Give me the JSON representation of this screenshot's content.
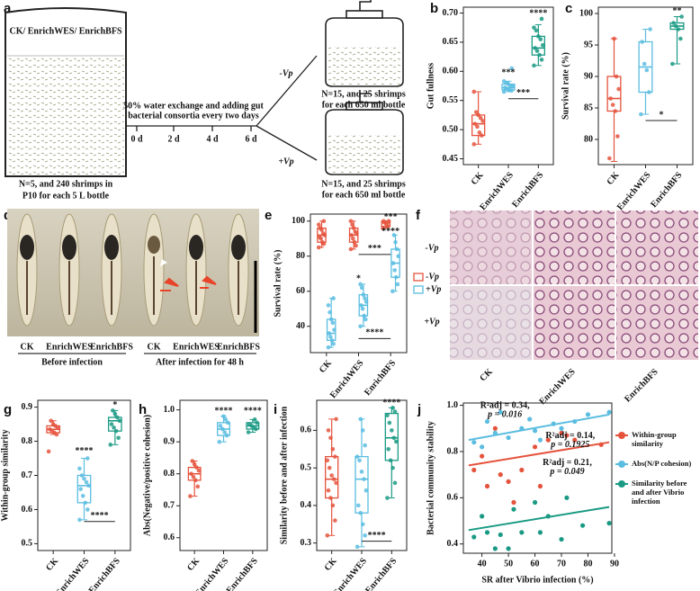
{
  "panel_a": {
    "panel": "a",
    "beaker_label": "CK/ EnrichWES/ EnrichBFS",
    "treatment": [
      "50% water exchange and adding gut",
      "bacterial consortia every two days"
    ],
    "days": [
      "0 d",
      "2 d",
      "4 d",
      "6 d"
    ],
    "minus_vp": "-Vp",
    "plus_vp": "+Vp",
    "bottle_top": [
      "N=15, and 25 shrimps",
      "for each 650 ml bottle"
    ],
    "bottle_bottom": [
      "N=15, and 25 shrimps",
      "for each 650 ml bottle"
    ],
    "beaker_caption": [
      "N=5, and 240 shrimps in",
      "P10 for each 5 L bottle"
    ]
  },
  "panel_d": {
    "panel": "d",
    "labels": [
      "CK",
      "EnrichWES",
      "EnrichBFS",
      "CK",
      "EnrichWES",
      "EnrichBFS"
    ],
    "groups": [
      "Before infection",
      "After infection for 48 h"
    ]
  },
  "panel_f": {
    "panel": "f",
    "rows": [
      "-Vp",
      "+Vp"
    ],
    "columns": [
      "CK",
      "EnrichWES",
      "EnrichBFS"
    ]
  },
  "chart_data": [
    {
      "type": "box",
      "panel": "b",
      "ylabel": "Gut fullness",
      "categories": [
        "CK",
        "EnrichWES",
        "EnrichBFS"
      ],
      "colors": [
        "#e5533d",
        "#5bbde0",
        "#1a9a84"
      ],
      "boxes": [
        {
          "min": 0.475,
          "q1": 0.49,
          "median": 0.51,
          "q3": 0.525,
          "max": 0.565
        },
        {
          "min": 0.565,
          "q1": 0.568,
          "median": 0.572,
          "q3": 0.578,
          "max": 0.583
        },
        {
          "min": 0.61,
          "q1": 0.628,
          "median": 0.64,
          "q3": 0.66,
          "max": 0.68
        }
      ],
      "points": [
        [
          0.475,
          0.49,
          0.495,
          0.505,
          0.51,
          0.515,
          0.52,
          0.525,
          0.53,
          0.565
        ],
        [
          0.565,
          0.567,
          0.568,
          0.57,
          0.572,
          0.574,
          0.575,
          0.578,
          0.58,
          0.583,
          0.605
        ],
        [
          0.61,
          0.62,
          0.628,
          0.635,
          0.64,
          0.645,
          0.655,
          0.66,
          0.67,
          0.675,
          0.69
        ]
      ],
      "ylim": [
        0.44,
        0.71
      ],
      "yticks": [
        0.45,
        {
          "value": 0.5,
          "label": "0.50"
        },
        0.55,
        {
          "value": 0.6,
          "label": "0.60"
        },
        0.65,
        {
          "value": 0.7,
          "label": "0.70"
        }
      ],
      "annotations": [
        {
          "text": "***",
          "x": "EnrichWES",
          "y": 0.597
        },
        {
          "text": "****",
          "x": "EnrichBFS",
          "y": 0.699
        }
      ],
      "brackets": [
        {
          "text": "***",
          "from": "EnrichWES",
          "to": "EnrichBFS",
          "y": 0.553
        }
      ]
    },
    {
      "type": "box",
      "panel": "c",
      "ylabel": "Survival rate (%)",
      "categories": [
        "CK",
        "EnrichWES",
        "EnrichBFS"
      ],
      "colors": [
        "#e5533d",
        "#5bbde0",
        "#1a9a84"
      ],
      "boxes": [
        {
          "min": 76.5,
          "q1": 84.5,
          "median": 86.5,
          "q3": 90,
          "max": 96
        },
        {
          "min": 84,
          "q1": 87.5,
          "median": 91.5,
          "q3": 95.5,
          "max": 97.5
        },
        {
          "min": 92,
          "q1": 97.5,
          "median": 98,
          "q3": 98.5,
          "max": 99.5
        }
      ],
      "points": [
        [
          77,
          80.5,
          84.5,
          85.5,
          86.5,
          88,
          90,
          96
        ],
        [
          84,
          87.5,
          91,
          92,
          95.5,
          97.5
        ],
        [
          92,
          96,
          97.5,
          98,
          98.5,
          99.5
        ]
      ],
      "ylim": [
        76,
        101
      ],
      "yticks": [
        80,
        85,
        90,
        95,
        100
      ],
      "annotations": [
        {
          "text": "**",
          "x": "EnrichBFS",
          "y": 100.3
        }
      ],
      "brackets": [
        {
          "text": "*",
          "from": "EnrichWES",
          "to": "EnrichBFS",
          "y": 83
        }
      ]
    },
    {
      "type": "grouped_box",
      "panel": "e",
      "ylabel": "Survival rate (%)",
      "categories": [
        "CK",
        "EnrichWES",
        "EnrichBFS"
      ],
      "series": [
        {
          "name": "-Vp",
          "color": "#e5533d",
          "boxes": [
            {
              "min": 85,
              "q1": 88,
              "median": 92,
              "q3": 96,
              "max": 100
            },
            {
              "min": 84,
              "q1": 88,
              "median": 92,
              "q3": 96,
              "max": 100
            },
            {
              "min": 96,
              "q1": 97,
              "median": 99,
              "q3": 100,
              "max": 100
            }
          ],
          "points": [
            [
              85,
              87,
              88,
              90,
              91,
              92,
              93,
              95,
              96,
              98,
              100
            ],
            [
              84,
              86,
              88,
              90,
              92,
              93,
              94,
              96,
              98,
              100
            ],
            [
              96,
              97,
              98,
              99,
              100,
              100
            ]
          ]
        },
        {
          "name": "+Vp",
          "color": "#5bbde0",
          "boxes": [
            {
              "min": 28,
              "q1": 32,
              "median": 36,
              "q3": 44,
              "max": 56
            },
            {
              "min": 40,
              "q1": 46,
              "median": 52,
              "q3": 58,
              "max": 64
            },
            {
              "min": 60,
              "q1": 68,
              "median": 76,
              "q3": 84,
              "max": 92
            }
          ],
          "points": [
            [
              28,
              30,
              32,
              34,
              36,
              38,
              42,
              44,
              48,
              52,
              56
            ],
            [
              40,
              44,
              46,
              50,
              52,
              54,
              56,
              58,
              62,
              64
            ],
            [
              60,
              64,
              68,
              72,
              76,
              80,
              84,
              88,
              92
            ]
          ]
        }
      ],
      "ylim": [
        25,
        104
      ],
      "yticks": [
        40,
        60,
        80,
        100
      ],
      "annotations": [
        {
          "text": "***",
          "x": "EnrichBFS",
          "y": 102
        },
        {
          "text": "****",
          "x": "EnrichBFS",
          "y": 94
        },
        {
          "text": "*",
          "x": "EnrichWES",
          "y": 67
        }
      ],
      "brackets": [
        {
          "text": "***",
          "from": "EnrichWES",
          "to": "EnrichBFS",
          "y": 81
        },
        {
          "text": "****",
          "from": "EnrichWES",
          "to": "EnrichBFS",
          "y": 33
        }
      ]
    },
    {
      "type": "box",
      "panel": "g",
      "ylabel": "Within-group similarity",
      "categories": [
        "CK",
        "EnrichWES",
        "EnrichBFS"
      ],
      "colors": [
        "#e5533d",
        "#5bbde0",
        "#1a9a84"
      ],
      "boxes": [
        {
          "min": 0.82,
          "q1": 0.825,
          "median": 0.835,
          "q3": 0.845,
          "max": 0.86
        },
        {
          "min": 0.57,
          "q1": 0.62,
          "median": 0.67,
          "q3": 0.7,
          "max": 0.75
        },
        {
          "min": 0.79,
          "q1": 0.83,
          "median": 0.86,
          "q3": 0.87,
          "max": 0.89
        }
      ],
      "points": [
        [
          0.77,
          0.82,
          0.825,
          0.83,
          0.835,
          0.84,
          0.845,
          0.85,
          0.86
        ],
        [
          0.57,
          0.6,
          0.62,
          0.64,
          0.66,
          0.67,
          0.68,
          0.69,
          0.7,
          0.72,
          0.75
        ],
        [
          0.79,
          0.81,
          0.83,
          0.84,
          0.85,
          0.86,
          0.87,
          0.88,
          0.89
        ]
      ],
      "ylim": [
        0.48,
        0.92
      ],
      "yticks": [
        0.5,
        0.6,
        0.7,
        0.8,
        0.9
      ],
      "annotations": [
        {
          "text": "****",
          "x": "EnrichWES",
          "y": 0.77
        },
        {
          "text": "*",
          "x": "EnrichBFS",
          "y": 0.905
        }
      ],
      "brackets": [
        {
          "text": "****",
          "from": "EnrichWES",
          "to": "EnrichBFS",
          "y": 0.565
        }
      ]
    },
    {
      "type": "box",
      "panel": "h",
      "ylabel": "Abs(Negative/positive cohesion)",
      "categories": [
        "CK",
        "EnrichWES",
        "EnrichBFS"
      ],
      "colors": [
        "#e5533d",
        "#5bbde0",
        "#1a9a84"
      ],
      "boxes": [
        {
          "min": 0.73,
          "q1": 0.78,
          "median": 0.8,
          "q3": 0.82,
          "max": 0.84
        },
        {
          "min": 0.9,
          "q1": 0.92,
          "median": 0.94,
          "q3": 0.96,
          "max": 0.98
        },
        {
          "min": 0.93,
          "q1": 0.94,
          "median": 0.95,
          "q3": 0.96,
          "max": 0.97
        }
      ],
      "points": [
        [
          0.73,
          0.76,
          0.78,
          0.79,
          0.8,
          0.81,
          0.82,
          0.83,
          0.84
        ],
        [
          0.9,
          0.92,
          0.93,
          0.94,
          0.95,
          0.96,
          0.97,
          0.98
        ],
        [
          0.93,
          0.94,
          0.945,
          0.95,
          0.955,
          0.96,
          0.97
        ]
      ],
      "ylim": [
        0.56,
        1.03
      ],
      "yticks": [
        0.6,
        0.7,
        0.8,
        0.9,
        {
          "value": 1.0,
          "label": "1.0"
        }
      ],
      "annotations": [
        {
          "text": "****",
          "x": "EnrichWES",
          "y": 0.995
        },
        {
          "text": "****",
          "x": "EnrichBFS",
          "y": 0.995
        }
      ],
      "brackets": []
    },
    {
      "type": "box",
      "panel": "i",
      "ylabel": "Similarity before and after infection",
      "categories": [
        "CK",
        "EnrichWES",
        "EnrichBFS"
      ],
      "colors": [
        "#e5533d",
        "#5bbde0",
        "#1a9a84"
      ],
      "boxes": [
        {
          "min": 0.32,
          "q1": 0.42,
          "median": 0.47,
          "q3": 0.53,
          "max": 0.63
        },
        {
          "min": 0.29,
          "q1": 0.38,
          "median": 0.47,
          "q3": 0.53,
          "max": 0.63
        },
        {
          "min": 0.42,
          "q1": 0.52,
          "median": 0.58,
          "q3": 0.645,
          "max": 0.66
        }
      ],
      "points": [
        [
          0.32,
          0.36,
          0.4,
          0.42,
          0.44,
          0.46,
          0.47,
          0.48,
          0.5,
          0.52,
          0.53,
          0.55,
          0.58,
          0.6,
          0.63
        ],
        [
          0.29,
          0.32,
          0.35,
          0.38,
          0.4,
          0.44,
          0.47,
          0.49,
          0.52,
          0.53,
          0.56,
          0.6,
          0.63
        ],
        [
          0.42,
          0.46,
          0.5,
          0.52,
          0.55,
          0.57,
          0.58,
          0.6,
          0.62,
          0.64,
          0.65,
          0.66
        ]
      ],
      "ylim": [
        0.28,
        0.68
      ],
      "yticks": [
        0.3,
        0.4,
        0.5,
        0.6
      ],
      "annotations": [
        {
          "text": "****",
          "x": "EnrichBFS",
          "y": 0.672
        }
      ],
      "brackets": [
        {
          "text": "****",
          "from": "EnrichWES",
          "to": "EnrichBFS",
          "y": 0.305
        }
      ]
    },
    {
      "type": "scatter",
      "panel": "j",
      "xlabel": "SR after Vibrio infection (%)",
      "ylabel": "Bacterial community stability",
      "xlim": [
        33,
        89
      ],
      "xticks": [
        40,
        50,
        60,
        70,
        80,
        90
      ],
      "ylim": [
        0.36,
        1.01
      ],
      "yticks": [
        0.4,
        0.6,
        0.8,
        {
          "value": 1.0,
          "label": "1.0"
        }
      ],
      "series": [
        {
          "name": "Within-group similarity",
          "color": "#e5533d",
          "stat": "R²adj = 0.14,",
          "p": "p = 0.1925",
          "x": [
            37,
            40,
            42,
            45,
            47,
            50,
            52,
            55,
            60,
            62,
            65,
            70,
            72,
            75,
            85
          ],
          "y": [
            0.72,
            0.78,
            0.65,
            0.9,
            0.7,
            0.67,
            0.58,
            0.72,
            0.82,
            0.65,
            0.85,
            0.88,
            0.87,
            0.85,
            0.83
          ],
          "fit": {
            "x": [
              35,
              88
            ],
            "y": [
              0.74,
              0.84
            ]
          }
        },
        {
          "name": "Abs(N/P cohesion)",
          "color": "#5bbde0",
          "stat": "R²adj = 0.34,",
          "p": "p = 0.016",
          "x": [
            37,
            40,
            42,
            45,
            47,
            50,
            55,
            58,
            60,
            62,
            67,
            70,
            75,
            80,
            88
          ],
          "y": [
            0.84,
            0.82,
            0.93,
            0.88,
            0.97,
            0.86,
            0.9,
            0.94,
            0.89,
            0.85,
            0.92,
            0.9,
            0.93,
            0.96,
            0.97
          ],
          "fit": {
            "x": [
              35,
              88
            ],
            "y": [
              0.85,
              0.96
            ]
          }
        },
        {
          "name": "Similarity before and after Vibrio infection",
          "color": "#1a9a84",
          "stat": "R²adj = 0.21,",
          "p": "p = 0.049",
          "x": [
            37,
            40,
            42,
            45,
            47,
            50,
            52,
            55,
            60,
            62,
            65,
            70,
            72,
            78,
            88
          ],
          "y": [
            0.43,
            0.52,
            0.45,
            0.38,
            0.44,
            0.38,
            0.55,
            0.45,
            0.58,
            0.45,
            0.52,
            0.42,
            0.6,
            0.48,
            0.49
          ],
          "fit": {
            "x": [
              35,
              88
            ],
            "y": [
              0.46,
              0.56
            ]
          }
        }
      ]
    }
  ]
}
